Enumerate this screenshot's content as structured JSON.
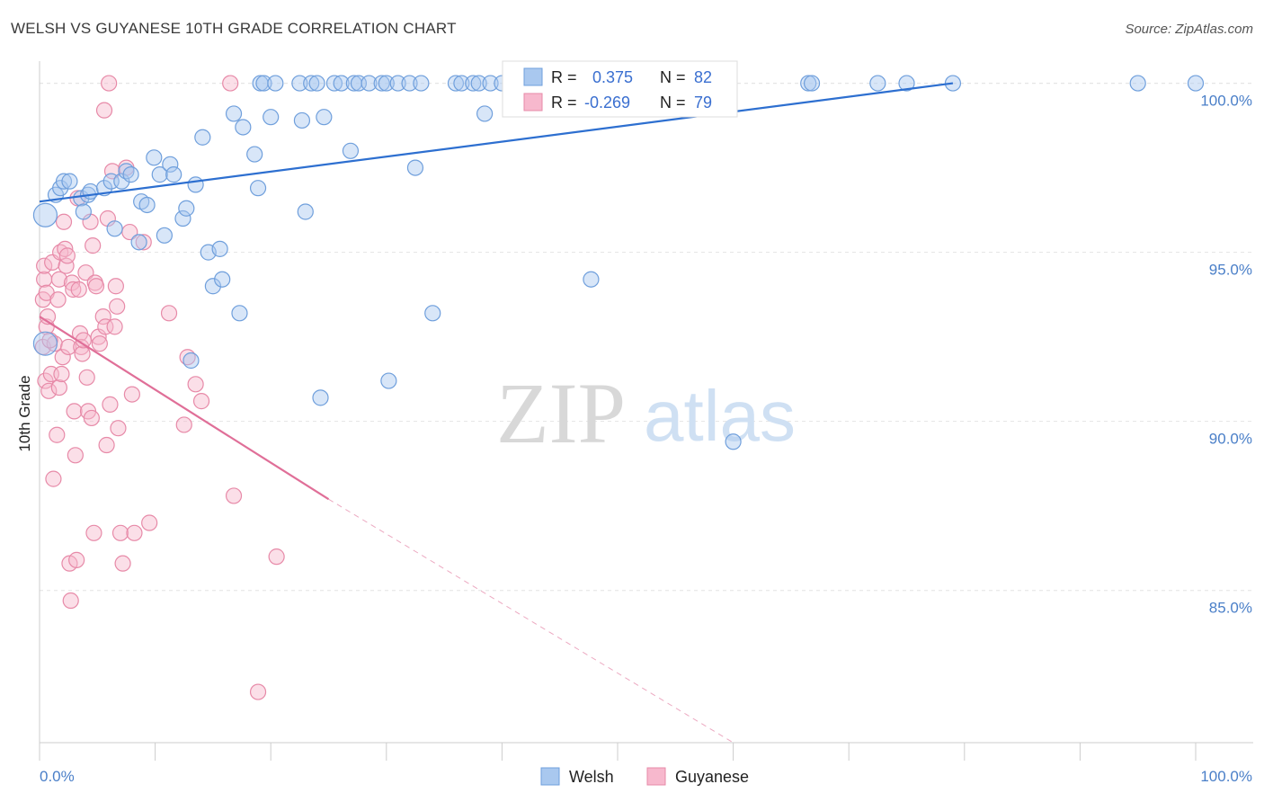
{
  "header": {
    "title": "WELSH VS GUYANESE 10TH GRADE CORRELATION CHART",
    "source": "Source: ZipAtlas.com"
  },
  "watermark": {
    "zip": "ZIP",
    "atlas": "atlas"
  },
  "colors": {
    "welsh_fill": "#a9c8ef",
    "welsh_stroke": "#6f9fdc",
    "welsh_line": "#2d6fd0",
    "guyanese_fill": "#f7b8cd",
    "guyanese_stroke": "#e78aa8",
    "guyanese_line": "#e06f98",
    "tick_color": "#4a7fc8",
    "grid": "#e4e4e4"
  },
  "legend_box": {
    "welsh": {
      "r_label": "R =",
      "r_value": "0.375",
      "n_label": "N =",
      "n_value": "82"
    },
    "guyanese": {
      "r_label": "R =",
      "r_value": "-0.269",
      "n_label": "N =",
      "n_value": "79"
    }
  },
  "chart_data": {
    "type": "scatter",
    "title": "WELSH VS GUYANESE 10TH GRADE CORRELATION CHART",
    "xlabel": "",
    "ylabel": "10th Grade",
    "xlim": [
      0,
      100
    ],
    "ylim": [
      80.5,
      100.6
    ],
    "x_tick_labels": [
      "0.0%",
      "100.0%"
    ],
    "y_ticks": [
      85,
      90,
      95,
      100
    ],
    "y_tick_labels": [
      "85.0%",
      "90.0%",
      "95.0%",
      "100.0%"
    ],
    "grid": true,
    "legend_bottom": [
      "Welsh",
      "Guyanese"
    ],
    "series": [
      {
        "name": "Welsh",
        "R": 0.375,
        "N": 82,
        "trend": {
          "x0": 0,
          "y0": 96.5,
          "x1": 79,
          "y1": 100.0
        },
        "points": [
          [
            0.5,
            96.1
          ],
          [
            0.5,
            92.3
          ],
          [
            1.4,
            96.7
          ],
          [
            1.8,
            96.9
          ],
          [
            2.1,
            97.1
          ],
          [
            2.6,
            97.1
          ],
          [
            3.6,
            96.6
          ],
          [
            3.8,
            96.2
          ],
          [
            4.2,
            96.7
          ],
          [
            4.4,
            96.8
          ],
          [
            5.6,
            96.9
          ],
          [
            6.2,
            97.1
          ],
          [
            6.5,
            95.7
          ],
          [
            7.1,
            97.1
          ],
          [
            7.5,
            97.4
          ],
          [
            7.9,
            97.3
          ],
          [
            8.6,
            95.3
          ],
          [
            8.8,
            96.5
          ],
          [
            9.3,
            96.4
          ],
          [
            9.9,
            97.8
          ],
          [
            10.4,
            97.3
          ],
          [
            10.8,
            95.5
          ],
          [
            11.3,
            97.6
          ],
          [
            11.6,
            97.3
          ],
          [
            12.4,
            96.0
          ],
          [
            12.7,
            96.3
          ],
          [
            13.1,
            91.8
          ],
          [
            13.5,
            97.0
          ],
          [
            14.1,
            98.4
          ],
          [
            14.6,
            95.0
          ],
          [
            15.0,
            94.0
          ],
          [
            15.6,
            95.1
          ],
          [
            15.8,
            94.2
          ],
          [
            16.8,
            99.1
          ],
          [
            17.3,
            93.2
          ],
          [
            17.6,
            98.7
          ],
          [
            18.6,
            97.9
          ],
          [
            18.9,
            96.9
          ],
          [
            19.1,
            100.0
          ],
          [
            19.4,
            100.0
          ],
          [
            20.0,
            99.0
          ],
          [
            20.4,
            100.0
          ],
          [
            22.5,
            100.0
          ],
          [
            22.7,
            98.9
          ],
          [
            23.0,
            96.2
          ],
          [
            23.5,
            100.0
          ],
          [
            24.0,
            100.0
          ],
          [
            24.3,
            90.7
          ],
          [
            24.6,
            99.0
          ],
          [
            25.5,
            100.0
          ],
          [
            26.1,
            100.0
          ],
          [
            26.9,
            98.0
          ],
          [
            27.2,
            100.0
          ],
          [
            27.6,
            100.0
          ],
          [
            28.5,
            100.0
          ],
          [
            29.6,
            100.0
          ],
          [
            30.0,
            100.0
          ],
          [
            30.2,
            91.2
          ],
          [
            31.0,
            100.0
          ],
          [
            32.0,
            100.0
          ],
          [
            32.5,
            97.5
          ],
          [
            33.0,
            100.0
          ],
          [
            34.0,
            93.2
          ],
          [
            36.0,
            100.0
          ],
          [
            36.5,
            100.0
          ],
          [
            37.5,
            100.0
          ],
          [
            38.0,
            100.0
          ],
          [
            38.5,
            99.1
          ],
          [
            39.0,
            100.0
          ],
          [
            40.0,
            100.0
          ],
          [
            41.0,
            100.0
          ],
          [
            47.7,
            94.2
          ],
          [
            50.0,
            100.0
          ],
          [
            54.0,
            100.0
          ],
          [
            60.0,
            89.4
          ],
          [
            66.5,
            100.0
          ],
          [
            66.8,
            100.0
          ],
          [
            72.5,
            100.0
          ],
          [
            75.0,
            100.0
          ],
          [
            79.0,
            100.0
          ],
          [
            95.0,
            100.0
          ],
          [
            100.0,
            100.0
          ]
        ]
      },
      {
        "name": "Guyanese",
        "R": -0.269,
        "N": 79,
        "trend": {
          "x0": 0,
          "y0": 93.1,
          "x1": 25,
          "y1": 87.7
        },
        "trend_dashed": {
          "x0": 25,
          "y0": 87.7,
          "x1": 60,
          "y1": 80.5
        },
        "points": [
          [
            0.3,
            92.2
          ],
          [
            0.3,
            93.6
          ],
          [
            0.4,
            94.2
          ],
          [
            0.4,
            94.6
          ],
          [
            0.5,
            91.2
          ],
          [
            0.6,
            93.8
          ],
          [
            0.6,
            92.8
          ],
          [
            0.7,
            93.1
          ],
          [
            0.8,
            90.9
          ],
          [
            1.0,
            91.4
          ],
          [
            1.1,
            94.7
          ],
          [
            1.2,
            88.3
          ],
          [
            1.3,
            92.3
          ],
          [
            1.5,
            89.6
          ],
          [
            1.6,
            93.6
          ],
          [
            1.7,
            94.2
          ],
          [
            1.7,
            91.0
          ],
          [
            1.8,
            95.0
          ],
          [
            1.9,
            91.4
          ],
          [
            2.0,
            91.9
          ],
          [
            2.1,
            95.9
          ],
          [
            2.2,
            95.1
          ],
          [
            2.3,
            94.6
          ],
          [
            2.4,
            94.9
          ],
          [
            2.5,
            92.2
          ],
          [
            2.6,
            85.8
          ],
          [
            2.7,
            84.7
          ],
          [
            2.8,
            94.1
          ],
          [
            2.9,
            93.9
          ],
          [
            3.0,
            90.3
          ],
          [
            3.1,
            89.0
          ],
          [
            3.2,
            85.9
          ],
          [
            3.3,
            96.6
          ],
          [
            3.4,
            93.9
          ],
          [
            3.5,
            92.6
          ],
          [
            3.6,
            92.2
          ],
          [
            3.7,
            92.0
          ],
          [
            3.8,
            92.4
          ],
          [
            4.0,
            94.4
          ],
          [
            4.1,
            91.3
          ],
          [
            4.2,
            90.3
          ],
          [
            4.4,
            95.9
          ],
          [
            4.5,
            90.1
          ],
          [
            4.6,
            95.2
          ],
          [
            4.7,
            86.7
          ],
          [
            4.8,
            94.1
          ],
          [
            4.9,
            94.0
          ],
          [
            5.1,
            92.5
          ],
          [
            5.2,
            92.3
          ],
          [
            5.5,
            93.1
          ],
          [
            5.6,
            99.2
          ],
          [
            5.7,
            92.8
          ],
          [
            5.8,
            89.3
          ],
          [
            5.9,
            96.0
          ],
          [
            6.0,
            100.0
          ],
          [
            6.1,
            90.5
          ],
          [
            6.3,
            97.4
          ],
          [
            6.5,
            92.8
          ],
          [
            6.6,
            94.0
          ],
          [
            6.7,
            93.4
          ],
          [
            6.8,
            89.8
          ],
          [
            7.0,
            86.7
          ],
          [
            7.2,
            85.8
          ],
          [
            7.5,
            97.5
          ],
          [
            7.8,
            95.6
          ],
          [
            8.0,
            90.8
          ],
          [
            8.2,
            86.7
          ],
          [
            9.0,
            95.3
          ],
          [
            9.5,
            87.0
          ],
          [
            11.2,
            93.2
          ],
          [
            12.5,
            89.9
          ],
          [
            12.8,
            91.9
          ],
          [
            13.5,
            91.1
          ],
          [
            14.0,
            90.6
          ],
          [
            16.5,
            100.0
          ],
          [
            16.8,
            87.8
          ],
          [
            18.9,
            82.0
          ],
          [
            20.5,
            86.0
          ],
          [
            0.9,
            92.4
          ]
        ]
      }
    ]
  }
}
